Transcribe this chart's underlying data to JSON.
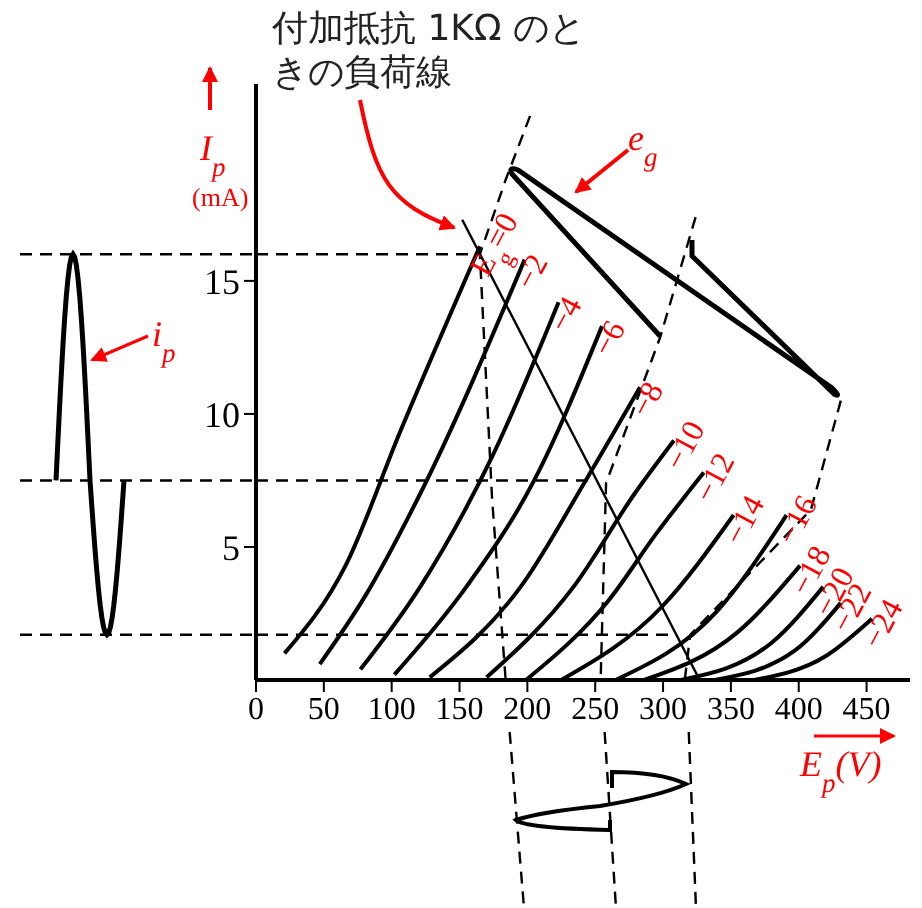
{
  "chart_data": {
    "type": "line",
    "xlabel": "E$_{p}$(V)",
    "ylabel": "I$_{p}$ (mA)",
    "xlim": [
      0,
      482
    ],
    "ylim": [
      0,
      22.4
    ],
    "xticks": [
      0,
      50,
      100,
      150,
      200,
      250,
      300,
      350,
      400,
      450
    ],
    "yticks": [
      5,
      10,
      15
    ],
    "grid": false,
    "legend": false,
    "marker": "none",
    "line_style": "solid",
    "series": [
      {
        "name": "E$_{g}$=0",
        "color": "#000000",
        "x": [
          21,
          66,
          106,
          165
        ],
        "values": [
          1.0,
          4.3,
          9.3,
          16.3
        ]
      },
      {
        "name": "−2",
        "color": "#000000",
        "x": [
          47,
          81,
          121,
          198
        ],
        "values": [
          0.6,
          3.2,
          7.0,
          15.8
        ]
      },
      {
        "name": "−4",
        "color": "#000000",
        "x": [
          77,
          121,
          175,
          223
        ],
        "values": [
          0.4,
          3.5,
          8.5,
          14.2
        ]
      },
      {
        "name": "−6",
        "color": "#000000",
        "x": [
          102,
          155,
          205,
          255
        ],
        "values": [
          0.2,
          3.5,
          7.5,
          13.3
        ]
      },
      {
        "name": "−8",
        "color": "#000000",
        "x": [
          128,
          195,
          243,
          283
        ],
        "values": [
          0.1,
          3.5,
          7.5,
          11.0
        ]
      },
      {
        "name": "−10",
        "color": "#000000",
        "x": [
          170,
          234,
          279,
          308
        ],
        "values": [
          0.1,
          3.5,
          7.0,
          9.0
        ]
      },
      {
        "name": "−12",
        "color": "#000000",
        "x": [
          199,
          260,
          295,
          330
        ],
        "values": [
          0,
          3.0,
          5.5,
          7.8
        ]
      },
      {
        "name": "−14",
        "color": "#000000",
        "x": [
          225,
          300,
          352
        ],
        "values": [
          0,
          2.8,
          6.2
        ]
      },
      {
        "name": "−16",
        "color": "#000000",
        "x": [
          265,
          340,
          391
        ],
        "values": [
          0,
          2.6,
          6.2
        ]
      },
      {
        "name": "−18",
        "color": "#000000",
        "x": [
          286,
          355,
          401
        ],
        "values": [
          0,
          1.8,
          4.3
        ]
      },
      {
        "name": "−20",
        "color": "#000000",
        "x": [
          313,
          380,
          418
        ],
        "values": [
          0,
          1.4,
          3.5
        ]
      },
      {
        "name": "−22",
        "color": "#000000",
        "x": [
          338,
          397,
          431
        ],
        "values": [
          0,
          1.1,
          2.9
        ]
      },
      {
        "name": "−24",
        "color": "#000000",
        "x": [
          367,
          420,
          454
        ],
        "values": [
          0,
          0.9,
          2.3
        ]
      },
      {
        "type": "line",
        "color": "#000000",
        "x": [
          152,
          327
        ],
        "values": [
          17.3,
          0
        ]
      },
      {
        "type": "line",
        "color": "#000000",
        "line_style": "dashed",
        "x": [
          202,
          184,
          165,
          174,
          184
        ],
        "values": [
          21.2,
          18.8,
          16.0,
          6.8,
          0
        ]
      },
      {
        "type": "line",
        "color": "#000000",
        "line_style": "dashed",
        "x": [
          324,
          298,
          258,
          254
        ],
        "values": [
          17.4,
          12.9,
          7.4,
          0
        ]
      },
      {
        "type": "line",
        "color": "#000000",
        "line_style": "dashed",
        "x": [
          431,
          409,
          320,
          316
        ],
        "values": [
          10.5,
          6.4,
          1.7,
          0
        ]
      }
    ],
    "ref_lines": [
      {
        "axis": "y",
        "value": 16.0,
        "line_style": "dashed",
        "color": "#000000"
      },
      {
        "axis": "y",
        "value": 7.5,
        "line_style": "dashed",
        "color": "#000000"
      },
      {
        "axis": "y",
        "value": 1.7,
        "line_style": "dashed",
        "color": "#000000"
      }
    ],
    "annotations": [
      {
        "text": "付加抵抗 1KΩ のときの負荷線",
        "x": 152,
        "y": 17.3
      },
      "e$_{g}$",
      "i$_{p}$"
    ]
  }
}
